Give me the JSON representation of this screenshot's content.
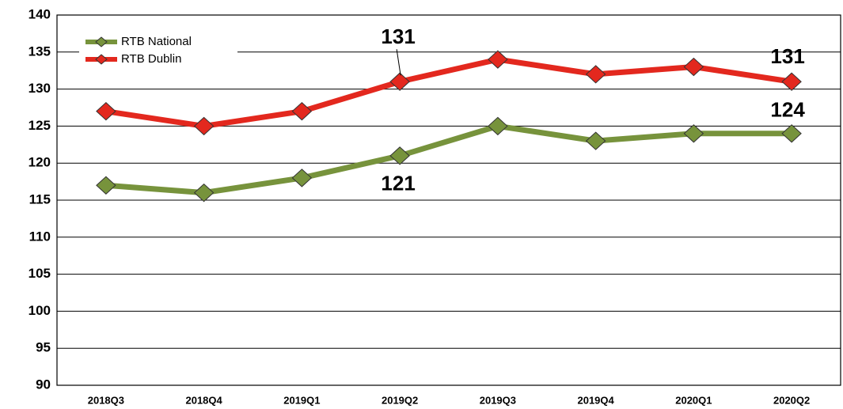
{
  "chart_data": {
    "type": "line",
    "categories": [
      "2018Q3",
      "2018Q4",
      "2019Q1",
      "2019Q2",
      "2019Q3",
      "2019Q4",
      "2020Q1",
      "2020Q2"
    ],
    "series": [
      {
        "name": "RTB National",
        "color": "#77933c",
        "values": [
          117,
          116,
          118,
          121,
          125,
          123,
          124,
          124
        ]
      },
      {
        "name": "RTB Dublin",
        "color": "#e3281e",
        "values": [
          127,
          125,
          127,
          131,
          134,
          132,
          133,
          131
        ]
      }
    ],
    "ylim": [
      90,
      140
    ],
    "yticks": [
      90,
      95,
      100,
      105,
      110,
      115,
      120,
      125,
      130,
      135,
      140
    ],
    "grid": true,
    "legend": "upper left"
  }
}
